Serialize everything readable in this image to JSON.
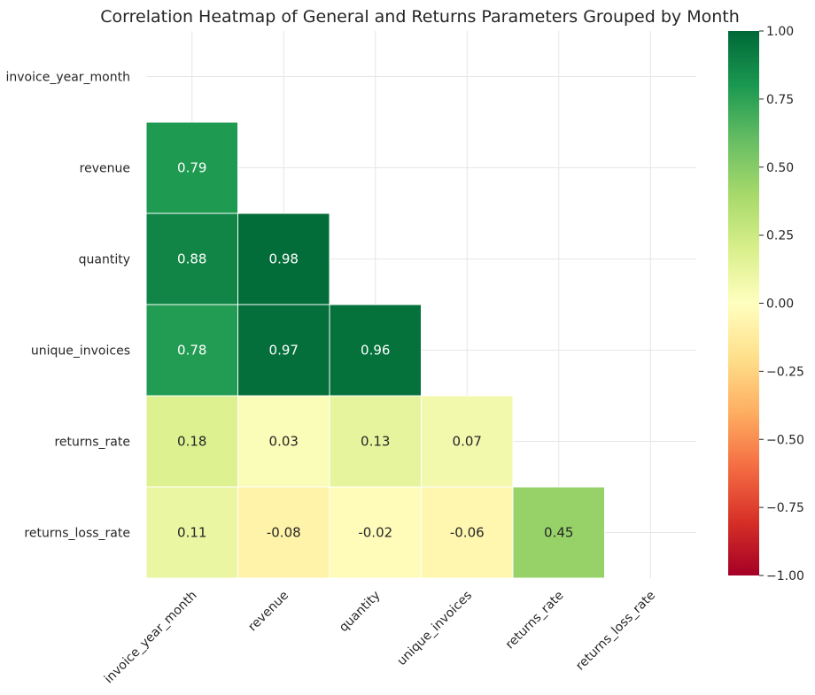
{
  "chart_data": {
    "type": "heatmap",
    "title": "Correlation Heatmap of General and Returns Parameters Grouped by Month",
    "x_labels": [
      "invoice_year_month",
      "revenue",
      "quantity",
      "unique_invoices",
      "returns_rate",
      "returns_loss_rate"
    ],
    "y_labels": [
      "invoice_year_month",
      "revenue",
      "quantity",
      "unique_invoices",
      "returns_rate",
      "returns_loss_rate"
    ],
    "mask": "upper-triangle-including-diagonal",
    "values": [
      [
        null,
        null,
        null,
        null,
        null,
        null
      ],
      [
        0.79,
        null,
        null,
        null,
        null,
        null
      ],
      [
        0.88,
        0.98,
        null,
        null,
        null,
        null
      ],
      [
        0.78,
        0.97,
        0.96,
        null,
        null,
        null
      ],
      [
        0.18,
        0.03,
        0.13,
        0.07,
        null,
        null
      ],
      [
        0.11,
        -0.08,
        -0.02,
        -0.06,
        0.45,
        null
      ]
    ],
    "colormap": "RdYlGn",
    "vmin": -1.0,
    "vmax": 1.0,
    "colorbar_ticks": [
      "1.00",
      "0.75",
      "0.50",
      "0.25",
      "0.00",
      "−0.25",
      "−0.50",
      "−0.75",
      "−1.00"
    ],
    "grid": true
  }
}
